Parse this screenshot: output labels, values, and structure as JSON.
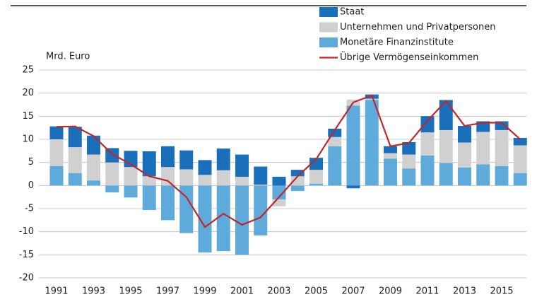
{
  "chart_data": {
    "type": "bar",
    "stacked": true,
    "y_axis_label": "Mrd. Euro",
    "categories": [
      "1991",
      null,
      "1993",
      null,
      "1995",
      null,
      "1997",
      null,
      "1999",
      null,
      "2001",
      null,
      "2003",
      null,
      "2005",
      null,
      "2007",
      null,
      "2009",
      null,
      "2011",
      null,
      "2013",
      null,
      "2015",
      null
    ],
    "series": [
      {
        "name": "Staat",
        "type": "bar",
        "color": "#1a6fba",
        "values": [
          2.8,
          4.4,
          4.1,
          3.1,
          3.5,
          5.4,
          4.5,
          4.1,
          3.2,
          4.7,
          4.8,
          3.9,
          1.9,
          1.4,
          2.6,
          1.8,
          -0.6,
          0.9,
          1.5,
          2.7,
          3.5,
          6.5,
          3.6,
          2.3,
          1.9,
          1.6
        ]
      },
      {
        "name": "Unternehmen und Privatpersonen",
        "type": "bar",
        "color": "#d0d0d0",
        "values": [
          5.8,
          5.6,
          5.6,
          5.0,
          4.0,
          2.0,
          4.0,
          3.5,
          2.3,
          3.3,
          1.9,
          0.2,
          -1.5,
          2.0,
          3.0,
          2.0,
          1.3,
          0.3,
          1.2,
          3.0,
          5.0,
          7.1,
          5.4,
          7.0,
          7.8,
          6.0
        ]
      },
      {
        "name": "Monetäre Finanzinstitute",
        "type": "bar",
        "color": "#5eaadb",
        "values": [
          4.2,
          2.7,
          1.1,
          -1.5,
          -2.6,
          -5.3,
          -7.5,
          -10.3,
          -14.5,
          -14.2,
          -15.0,
          -10.8,
          -3.0,
          -1.2,
          0.4,
          8.5,
          17.3,
          18.5,
          5.8,
          3.7,
          6.5,
          4.9,
          3.9,
          4.6,
          4.2,
          2.7
        ]
      },
      {
        "name": "Übrige Vermögenseinkommen",
        "type": "line",
        "color": "#c0262d",
        "values": [
          12.7,
          12.8,
          10.7,
          6.8,
          4.6,
          2.0,
          1.0,
          -2.5,
          -9.0,
          -6.1,
          -8.5,
          -6.9,
          -2.5,
          2.0,
          5.7,
          12.0,
          18.0,
          19.5,
          8.5,
          9.2,
          14.0,
          18.3,
          12.9,
          13.6,
          13.6,
          10.0
        ]
      }
    ],
    "ylim": [
      -20,
      25
    ],
    "yticks": [
      -20,
      -15,
      -10,
      -5,
      0,
      5,
      10,
      15,
      20,
      25
    ],
    "grid": true,
    "legend": "top-right"
  }
}
